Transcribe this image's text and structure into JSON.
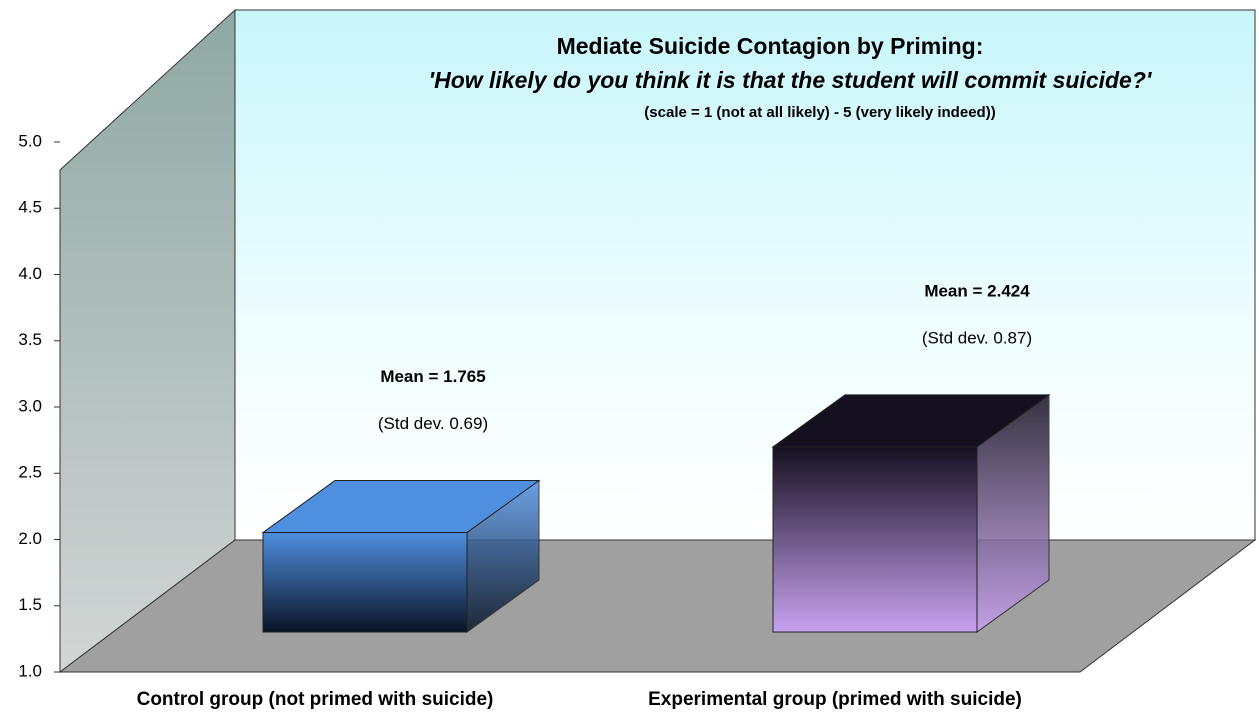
{
  "chart_data": {
    "type": "bar3d",
    "title": "Mediate Suicide Contagion by Priming:",
    "subtitle": "'How likely do you think it is that the student will commit suicide?'",
    "note": "(scale = 1 (not at all likely) - 5 (very likely indeed))",
    "categories": [
      "Control group (not primed with suicide)",
      "Experimental group (primed with suicide)"
    ],
    "values": [
      1.765,
      2.424
    ],
    "colors": [
      "#4f8fe0",
      "#c8a2f0"
    ],
    "annotations": [
      [
        "Mean = 1.765",
        "(Std dev. 0.69)"
      ],
      [
        "Mean = 2.424",
        "(Std dev. 0.87)"
      ]
    ],
    "ylim": [
      1,
      5
    ],
    "yticks": [
      {
        "value": 1,
        "label": "1.0"
      },
      {
        "value": 1.5,
        "label": "1.5"
      },
      {
        "value": 2,
        "label": "2.0"
      },
      {
        "value": 2.5,
        "label": "2.5"
      },
      {
        "value": 3,
        "label": "3.0"
      },
      {
        "value": 3.5,
        "label": "3.5"
      },
      {
        "value": 4,
        "label": "4.0"
      },
      {
        "value": 4.5,
        "label": "4.5"
      },
      {
        "value": 5,
        "label": "5.0"
      }
    ]
  }
}
